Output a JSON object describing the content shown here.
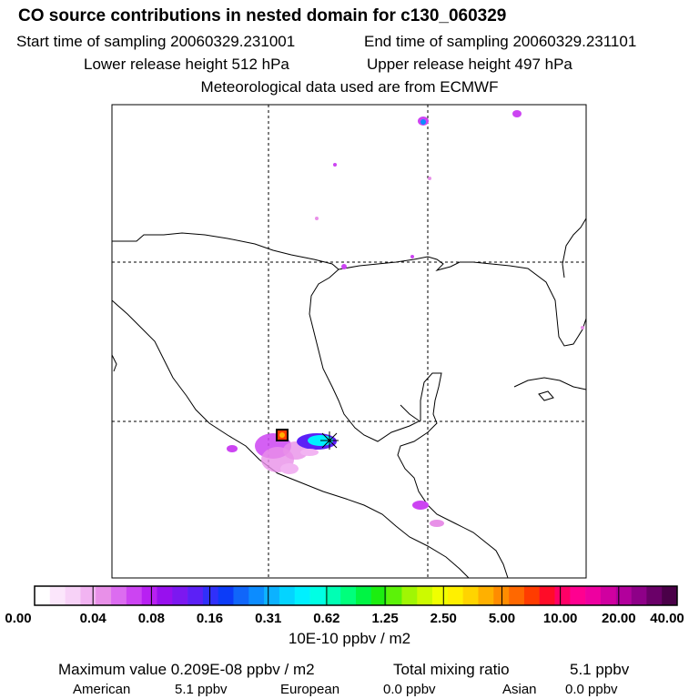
{
  "header": {
    "title": "CO  source contributions in nested domain for c130_060329",
    "start_time": "Start time of sampling 20060329.231001",
    "end_time": "End time of sampling 20060329.231101",
    "lower_height": "Lower release height  512 hPa",
    "upper_height": "Upper release height  497 hPa",
    "met_data": "Meteorological data used are from ECMWF"
  },
  "colorbar": {
    "colors": [
      "#ffffff",
      "#fbe6fb",
      "#f7d2f7",
      "#f2b4f2",
      "#e890e8",
      "#dc6cf0",
      "#cc44f2",
      "#b820f2",
      "#9810ee",
      "#7c18f0",
      "#5c20f6",
      "#3030fa",
      "#0c3cf8",
      "#1066fa",
      "#0c8cff",
      "#0cb2ff",
      "#04d4ff",
      "#00f0ff",
      "#00ffe4",
      "#00ffb4",
      "#00ff7c",
      "#00f444",
      "#1cee10",
      "#5cf208",
      "#a0f604",
      "#ccfa00",
      "#f0ff00",
      "#fff000",
      "#ffd400",
      "#ffb000",
      "#ff8c00",
      "#ff6800",
      "#ff3c00",
      "#ff0c28",
      "#ff0066",
      "#ff0090",
      "#ee00a0",
      "#d000a0",
      "#b2009c",
      "#8e0088",
      "#6a0068",
      "#4a0048"
    ],
    "tick_labels": [
      "0.00",
      "0.04",
      "0.08",
      "0.16",
      "0.31",
      "0.62",
      "1.25",
      "2.50",
      "5.00",
      "10.00",
      "20.00",
      "40.00"
    ],
    "unit": "10E-10 ppbv / m2"
  },
  "footer": {
    "max_value": "Maximum value  0.209E-08 ppbv / m2",
    "total_label": "Total mixing ratio",
    "total_value": "5.1 ppbv",
    "american_label": "American",
    "american_value": "5.1 ppbv",
    "european_label": "European",
    "european_value": "0.0 ppbv",
    "asian_label": "Asian",
    "asian_value": "0.0 ppbv"
  }
}
